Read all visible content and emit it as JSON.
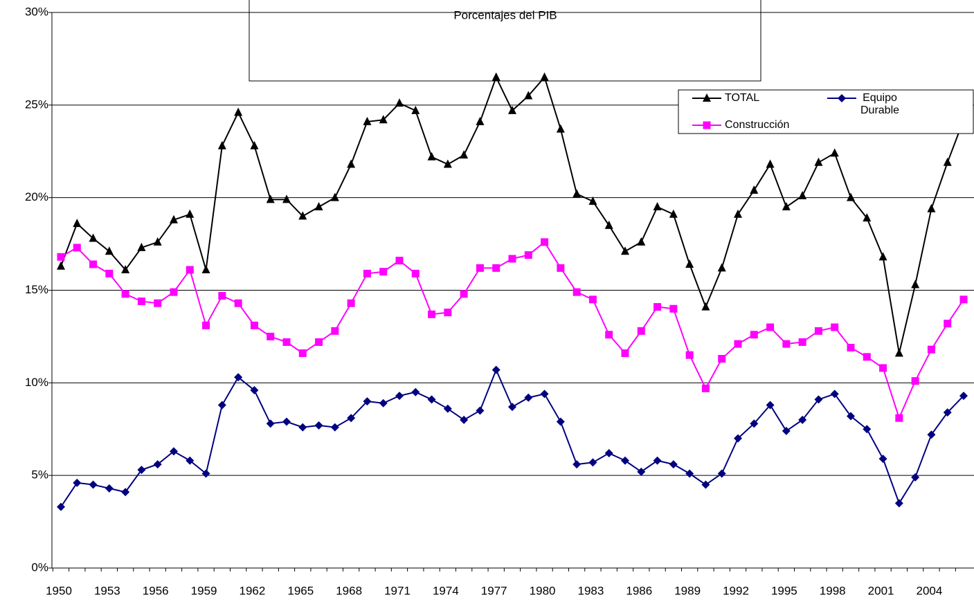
{
  "chart_data": {
    "type": "line",
    "title": "Porcentajes del PIB",
    "categories": [
      "1950",
      null,
      null,
      "1953",
      null,
      null,
      "1956",
      null,
      null,
      "1959",
      null,
      null,
      "1962",
      null,
      null,
      "1965",
      null,
      null,
      "1968",
      null,
      null,
      "1971",
      null,
      null,
      "1974",
      null,
      null,
      "1977",
      null,
      null,
      "1980",
      null,
      null,
      "1983",
      null,
      null,
      "1986",
      null,
      null,
      "1989",
      null,
      null,
      "1992",
      null,
      null,
      "1995",
      null,
      null,
      "1998",
      null,
      null,
      "2001",
      null,
      null,
      "2004",
      null,
      null
    ],
    "series": [
      {
        "name": "TOTAL",
        "color": "#000000",
        "marker": "triangle",
        "values": [
          16.3,
          18.6,
          17.8,
          17.1,
          16.1,
          17.3,
          17.6,
          18.8,
          19.1,
          16.1,
          22.8,
          24.6,
          22.8,
          19.9,
          19.9,
          19.0,
          19.5,
          20.0,
          21.8,
          24.1,
          24.2,
          25.1,
          24.7,
          22.2,
          21.8,
          22.3,
          24.1,
          26.5,
          24.7,
          25.5,
          26.5,
          23.7,
          20.2,
          19.8,
          18.5,
          17.1,
          17.6,
          19.5,
          19.1,
          16.4,
          14.1,
          16.2,
          19.1,
          20.4,
          21.8,
          19.5,
          20.1,
          21.9,
          22.4,
          20.0,
          18.9,
          16.8,
          11.6,
          15.3,
          19.4,
          21.9,
          24.2
        ]
      },
      {
        "name": "Equipo Durable",
        "color": "#000080",
        "marker": "diamond",
        "values": [
          3.3,
          4.6,
          4.5,
          4.3,
          4.1,
          5.3,
          5.6,
          6.3,
          5.8,
          5.1,
          8.8,
          10.3,
          9.6,
          7.8,
          7.9,
          7.6,
          7.7,
          7.6,
          8.1,
          9.0,
          8.9,
          9.3,
          9.5,
          9.1,
          8.6,
          8.0,
          8.5,
          10.7,
          8.7,
          9.2,
          9.4,
          7.9,
          5.6,
          5.7,
          6.2,
          5.8,
          5.2,
          5.8,
          5.6,
          5.1,
          4.5,
          5.1,
          7.0,
          7.8,
          8.8,
          7.4,
          8.0,
          9.1,
          9.4,
          8.2,
          7.5,
          5.9,
          3.5,
          4.9,
          7.2,
          8.4,
          9.3
        ]
      },
      {
        "name": "Construcción",
        "color": "#ff00ff",
        "marker": "square",
        "values": [
          16.8,
          17.3,
          16.4,
          15.9,
          14.8,
          14.4,
          14.3,
          14.9,
          16.1,
          13.1,
          14.7,
          14.3,
          13.1,
          12.5,
          12.2,
          11.6,
          12.2,
          12.8,
          14.3,
          15.9,
          16.0,
          16.6,
          15.9,
          13.7,
          13.8,
          14.8,
          16.2,
          16.2,
          16.7,
          16.9,
          17.6,
          16.2,
          14.9,
          14.5,
          12.6,
          11.6,
          12.8,
          14.1,
          14.0,
          11.5,
          9.7,
          11.3,
          12.1,
          12.6,
          13.0,
          12.1,
          12.2,
          12.8,
          13.0,
          11.9,
          11.4,
          10.8,
          8.1,
          10.1,
          11.8,
          13.2,
          14.5
        ]
      }
    ],
    "ylim": [
      0,
      30
    ],
    "yticks": [
      {
        "value": 0,
        "label": "0%"
      },
      {
        "value": 5,
        "label": "5%"
      },
      {
        "value": 10,
        "label": "10%"
      },
      {
        "value": 15,
        "label": "15%"
      },
      {
        "value": 20,
        "label": "20%"
      },
      {
        "value": 25,
        "label": "25%"
      },
      {
        "value": 30,
        "label": "30%"
      }
    ],
    "grid": true,
    "legend": "top-right"
  }
}
